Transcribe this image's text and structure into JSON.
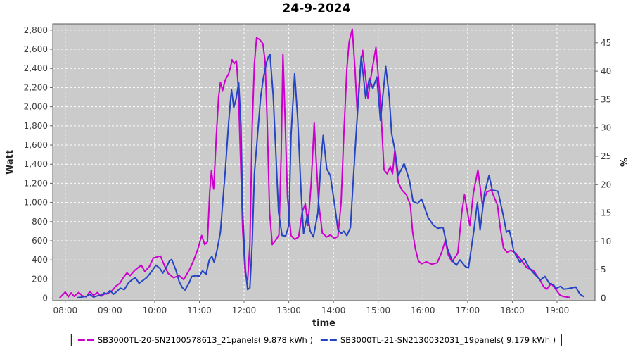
{
  "chart_data": {
    "type": "line",
    "title": "24-9-2024",
    "xlabel": "time",
    "ylabel_left": "Watt",
    "ylabel_right": "%",
    "plot_bg": "#cbcbcb",
    "gridline_color": "#ffffff",
    "x_unit": "hour_decimal",
    "x_range_hours": [
      7.72,
      19.85
    ],
    "y_left_range": [
      0,
      2865
    ],
    "y_right_range": [
      0,
      48
    ],
    "x_ticks": {
      "values": [
        8,
        9,
        10,
        11,
        12,
        13,
        14,
        15,
        16,
        17,
        18,
        19
      ],
      "labels": [
        "08:00",
        "09:00",
        "10:00",
        "11:00",
        "12:00",
        "13:00",
        "14:00",
        "15:00",
        "16:00",
        "17:00",
        "18:00",
        "19:00"
      ]
    },
    "y_left_ticks": {
      "values": [
        0,
        200,
        400,
        600,
        800,
        1000,
        1200,
        1400,
        1600,
        1800,
        2000,
        2200,
        2400,
        2600,
        2800
      ],
      "labels": [
        "0",
        "200",
        "400",
        "600",
        "800",
        "1,000",
        "1,200",
        "1,400",
        "1,600",
        "1,800",
        "2,000",
        "2,200",
        "2,400",
        "2,600",
        "2,800"
      ]
    },
    "y_right_ticks": {
      "values": [
        0,
        5,
        10,
        15,
        20,
        25,
        30,
        35,
        40,
        45
      ],
      "labels": [
        "0",
        "5",
        "10",
        "15",
        "20",
        "25",
        "30",
        "35",
        "40",
        "45"
      ]
    },
    "legend_position": "bottom",
    "series": [
      {
        "name": "SB3000TL-20-SN2100578613_21panels( 9.878 kWh )",
        "color": "#cc00cc",
        "axis": "left",
        "points": [
          [
            7.88,
            5
          ],
          [
            7.93,
            30
          ],
          [
            8.0,
            65
          ],
          [
            8.07,
            15
          ],
          [
            8.13,
            55
          ],
          [
            8.2,
            20
          ],
          [
            8.3,
            60
          ],
          [
            8.38,
            25
          ],
          [
            8.47,
            15
          ],
          [
            8.55,
            70
          ],
          [
            8.63,
            30
          ],
          [
            8.72,
            60
          ],
          [
            8.8,
            20
          ],
          [
            8.88,
            45
          ],
          [
            8.97,
            55
          ],
          [
            9.05,
            80
          ],
          [
            9.13,
            125
          ],
          [
            9.22,
            155
          ],
          [
            9.3,
            215
          ],
          [
            9.38,
            265
          ],
          [
            9.45,
            235
          ],
          [
            9.55,
            290
          ],
          [
            9.63,
            320
          ],
          [
            9.7,
            345
          ],
          [
            9.78,
            280
          ],
          [
            9.88,
            330
          ],
          [
            9.97,
            420
          ],
          [
            10.08,
            435
          ],
          [
            10.13,
            440
          ],
          [
            10.22,
            340
          ],
          [
            10.3,
            260
          ],
          [
            10.42,
            215
          ],
          [
            10.55,
            235
          ],
          [
            10.65,
            195
          ],
          [
            10.78,
            300
          ],
          [
            10.88,
            405
          ],
          [
            10.97,
            520
          ],
          [
            11.05,
            655
          ],
          [
            11.12,
            560
          ],
          [
            11.18,
            590
          ],
          [
            11.23,
            1100
          ],
          [
            11.27,
            1330
          ],
          [
            11.32,
            1140
          ],
          [
            11.38,
            1700
          ],
          [
            11.43,
            2100
          ],
          [
            11.47,
            2255
          ],
          [
            11.52,
            2170
          ],
          [
            11.58,
            2280
          ],
          [
            11.65,
            2340
          ],
          [
            11.7,
            2420
          ],
          [
            11.73,
            2490
          ],
          [
            11.78,
            2450
          ],
          [
            11.83,
            2480
          ],
          [
            11.87,
            2200
          ],
          [
            11.92,
            1450
          ],
          [
            11.97,
            700
          ],
          [
            12.03,
            230
          ],
          [
            12.08,
            190
          ],
          [
            12.13,
            560
          ],
          [
            12.18,
            1780
          ],
          [
            12.23,
            2450
          ],
          [
            12.28,
            2720
          ],
          [
            12.35,
            2700
          ],
          [
            12.42,
            2660
          ],
          [
            12.47,
            2480
          ],
          [
            12.52,
            1800
          ],
          [
            12.57,
            900
          ],
          [
            12.63,
            560
          ],
          [
            12.7,
            600
          ],
          [
            12.78,
            660
          ],
          [
            12.83,
            1500
          ],
          [
            12.87,
            2550
          ],
          [
            12.92,
            1830
          ],
          [
            12.97,
            1060
          ],
          [
            13.05,
            655
          ],
          [
            13.13,
            615
          ],
          [
            13.22,
            640
          ],
          [
            13.3,
            900
          ],
          [
            13.37,
            985
          ],
          [
            13.43,
            760
          ],
          [
            13.5,
            1200
          ],
          [
            13.57,
            1830
          ],
          [
            13.62,
            1380
          ],
          [
            13.67,
            985
          ],
          [
            13.75,
            680
          ],
          [
            13.85,
            640
          ],
          [
            13.93,
            660
          ],
          [
            14.02,
            625
          ],
          [
            14.1,
            645
          ],
          [
            14.17,
            1000
          ],
          [
            14.23,
            1700
          ],
          [
            14.3,
            2400
          ],
          [
            14.35,
            2680
          ],
          [
            14.42,
            2810
          ],
          [
            14.48,
            2400
          ],
          [
            14.53,
            1955
          ],
          [
            14.6,
            2400
          ],
          [
            14.65,
            2590
          ],
          [
            14.72,
            2300
          ],
          [
            14.77,
            2090
          ],
          [
            14.85,
            2350
          ],
          [
            14.95,
            2620
          ],
          [
            15.03,
            2160
          ],
          [
            15.07,
            1870
          ],
          [
            15.13,
            1340
          ],
          [
            15.2,
            1300
          ],
          [
            15.27,
            1375
          ],
          [
            15.32,
            1300
          ],
          [
            15.37,
            1540
          ],
          [
            15.45,
            1210
          ],
          [
            15.53,
            1130
          ],
          [
            15.63,
            1080
          ],
          [
            15.72,
            970
          ],
          [
            15.77,
            690
          ],
          [
            15.83,
            520
          ],
          [
            15.9,
            390
          ],
          [
            15.97,
            360
          ],
          [
            16.08,
            380
          ],
          [
            16.2,
            355
          ],
          [
            16.32,
            370
          ],
          [
            16.42,
            480
          ],
          [
            16.5,
            600
          ],
          [
            16.57,
            450
          ],
          [
            16.65,
            380
          ],
          [
            16.78,
            470
          ],
          [
            16.87,
            900
          ],
          [
            16.93,
            1080
          ],
          [
            17.05,
            760
          ],
          [
            17.13,
            1100
          ],
          [
            17.23,
            1340
          ],
          [
            17.33,
            985
          ],
          [
            17.43,
            1110
          ],
          [
            17.53,
            1130
          ],
          [
            17.6,
            1050
          ],
          [
            17.67,
            970
          ],
          [
            17.73,
            740
          ],
          [
            17.8,
            530
          ],
          [
            17.88,
            480
          ],
          [
            17.97,
            500
          ],
          [
            18.07,
            470
          ],
          [
            18.2,
            400
          ],
          [
            18.32,
            320
          ],
          [
            18.47,
            290
          ],
          [
            18.63,
            180
          ],
          [
            18.7,
            120
          ],
          [
            18.77,
            95
          ],
          [
            18.87,
            155
          ],
          [
            18.98,
            88
          ],
          [
            19.07,
            30
          ],
          [
            19.15,
            18
          ],
          [
            19.28,
            8
          ]
        ]
      },
      {
        "name": "SB3000TL-21-SN2130032031_19panels( 9.179 kWh )",
        "color": "#2444c4",
        "axis": "left",
        "points": [
          [
            8.27,
            5
          ],
          [
            8.35,
            10
          ],
          [
            8.47,
            20
          ],
          [
            8.55,
            40
          ],
          [
            8.63,
            12
          ],
          [
            8.72,
            25
          ],
          [
            8.8,
            30
          ],
          [
            8.87,
            55
          ],
          [
            8.93,
            45
          ],
          [
            9.0,
            80
          ],
          [
            9.08,
            42
          ],
          [
            9.15,
            70
          ],
          [
            9.23,
            105
          ],
          [
            9.32,
            90
          ],
          [
            9.42,
            165
          ],
          [
            9.5,
            195
          ],
          [
            9.57,
            215
          ],
          [
            9.65,
            155
          ],
          [
            9.75,
            190
          ],
          [
            9.82,
            215
          ],
          [
            9.92,
            272
          ],
          [
            10.03,
            345
          ],
          [
            10.12,
            310
          ],
          [
            10.18,
            262
          ],
          [
            10.27,
            330
          ],
          [
            10.33,
            390
          ],
          [
            10.38,
            405
          ],
          [
            10.47,
            300
          ],
          [
            10.55,
            170
          ],
          [
            10.62,
            110
          ],
          [
            10.68,
            85
          ],
          [
            10.77,
            160
          ],
          [
            10.83,
            228
          ],
          [
            10.92,
            235
          ],
          [
            11.0,
            230
          ],
          [
            11.07,
            287
          ],
          [
            11.15,
            250
          ],
          [
            11.22,
            400
          ],
          [
            11.28,
            437
          ],
          [
            11.33,
            375
          ],
          [
            11.4,
            515
          ],
          [
            11.47,
            690
          ],
          [
            11.53,
            1050
          ],
          [
            11.58,
            1330
          ],
          [
            11.65,
            1810
          ],
          [
            11.7,
            2090
          ],
          [
            11.72,
            2175
          ],
          [
            11.77,
            1990
          ],
          [
            11.82,
            2080
          ],
          [
            11.88,
            2250
          ],
          [
            11.93,
            1800
          ],
          [
            11.97,
            900
          ],
          [
            12.03,
            300
          ],
          [
            12.08,
            90
          ],
          [
            12.13,
            110
          ],
          [
            12.18,
            560
          ],
          [
            12.23,
            1300
          ],
          [
            12.3,
            1700
          ],
          [
            12.37,
            2100
          ],
          [
            12.43,
            2300
          ],
          [
            12.5,
            2460
          ],
          [
            12.55,
            2530
          ],
          [
            12.58,
            2545
          ],
          [
            12.65,
            2120
          ],
          [
            12.7,
            1630
          ],
          [
            12.77,
            900
          ],
          [
            12.85,
            655
          ],
          [
            12.93,
            650
          ],
          [
            13.0,
            760
          ],
          [
            13.05,
            1700
          ],
          [
            13.13,
            2345
          ],
          [
            13.2,
            1870
          ],
          [
            13.27,
            1150
          ],
          [
            13.33,
            676
          ],
          [
            13.42,
            874
          ],
          [
            13.48,
            700
          ],
          [
            13.55,
            640
          ],
          [
            13.65,
            890
          ],
          [
            13.72,
            1430
          ],
          [
            13.77,
            1700
          ],
          [
            13.85,
            1350
          ],
          [
            13.93,
            1280
          ],
          [
            14.03,
            960
          ],
          [
            14.1,
            713
          ],
          [
            14.17,
            676
          ],
          [
            14.23,
            700
          ],
          [
            14.3,
            654
          ],
          [
            14.38,
            740
          ],
          [
            14.45,
            1300
          ],
          [
            14.52,
            1815
          ],
          [
            14.57,
            2160
          ],
          [
            14.62,
            2530
          ],
          [
            14.72,
            2090
          ],
          [
            14.8,
            2295
          ],
          [
            14.88,
            2190
          ],
          [
            14.97,
            2310
          ],
          [
            15.05,
            1855
          ],
          [
            15.1,
            2100
          ],
          [
            15.17,
            2420
          ],
          [
            15.25,
            2090
          ],
          [
            15.3,
            1720
          ],
          [
            15.37,
            1560
          ],
          [
            15.45,
            1280
          ],
          [
            15.58,
            1405
          ],
          [
            15.7,
            1230
          ],
          [
            15.78,
            1010
          ],
          [
            15.88,
            990
          ],
          [
            15.97,
            1036
          ],
          [
            16.12,
            838
          ],
          [
            16.23,
            765
          ],
          [
            16.33,
            730
          ],
          [
            16.45,
            740
          ],
          [
            16.55,
            520
          ],
          [
            16.65,
            397
          ],
          [
            16.75,
            345
          ],
          [
            16.83,
            400
          ],
          [
            16.95,
            330
          ],
          [
            17.02,
            316
          ],
          [
            17.15,
            742
          ],
          [
            17.22,
            1000
          ],
          [
            17.28,
            713
          ],
          [
            17.38,
            1100
          ],
          [
            17.48,
            1285
          ],
          [
            17.55,
            1130
          ],
          [
            17.68,
            1117
          ],
          [
            17.8,
            860
          ],
          [
            17.87,
            690
          ],
          [
            17.93,
            713
          ],
          [
            17.98,
            620
          ],
          [
            18.03,
            492
          ],
          [
            18.17,
            375
          ],
          [
            18.27,
            412
          ],
          [
            18.37,
            323
          ],
          [
            18.5,
            250
          ],
          [
            18.63,
            191
          ],
          [
            18.73,
            228
          ],
          [
            18.83,
            154
          ],
          [
            18.92,
            140
          ],
          [
            18.98,
            103
          ],
          [
            19.08,
            125
          ],
          [
            19.15,
            95
          ],
          [
            19.25,
            100
          ],
          [
            19.42,
            118
          ],
          [
            19.5,
            51
          ],
          [
            19.55,
            29
          ],
          [
            19.6,
            18
          ]
        ]
      }
    ]
  }
}
